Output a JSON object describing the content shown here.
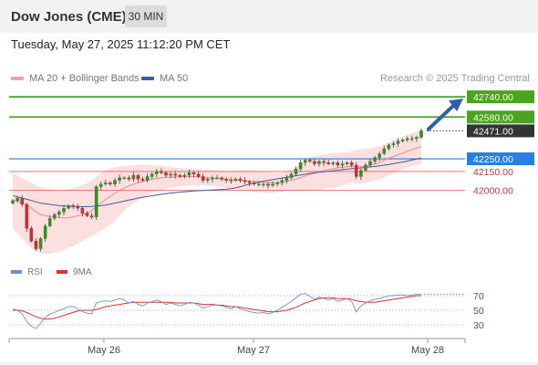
{
  "header": {
    "title": "Dow Jones (CME)",
    "timeframe": "30 MIN",
    "datetime": "Tuesday, May 27, 2025 11:12:20 PM CET"
  },
  "legend": {
    "ma20_label": "MA 20 + Bollinger Bands",
    "ma20_color": "#f4a0a0",
    "ma50_label": "MA 50",
    "ma50_color": "#3a5f9a",
    "copyright": "Research © 2025 Trading Central"
  },
  "rsi_legend": {
    "rsi_label": "RSI",
    "rsi_color": "#6a8fd8",
    "ma_label": "9MA",
    "ma_color": "#e03030"
  },
  "chart_data": [
    {
      "type": "candlestick",
      "x_ticks": [
        "May 26",
        "May 27",
        "May 28"
      ],
      "ylim": [
        41450,
        42820
      ],
      "levels": [
        {
          "value": 42740,
          "label": "42740.00",
          "kind": "resistance",
          "color": "#4aa41e"
        },
        {
          "value": 42580,
          "label": "42580.00",
          "kind": "resistance",
          "color": "#4aa41e"
        },
        {
          "value": 42471,
          "label": "42471.00",
          "kind": "last-price",
          "color": "#333333"
        },
        {
          "value": 42250,
          "label": "42250.00",
          "kind": "pivot",
          "color": "#2a7de1"
        },
        {
          "value": 42150,
          "label": "42150.00",
          "kind": "support",
          "color": "#e06060"
        },
        {
          "value": 42000,
          "label": "42000.00",
          "kind": "support",
          "color": "#e06060"
        }
      ],
      "closes": [
        41920,
        41940,
        41890,
        41700,
        41600,
        41540,
        41620,
        41720,
        41780,
        41810,
        41830,
        41860,
        41880,
        41870,
        41860,
        41820,
        41800,
        41790,
        42030,
        42050,
        42060,
        42050,
        42080,
        42100,
        42100,
        42090,
        42120,
        42090,
        42080,
        42110,
        42130,
        42150,
        42140,
        42120,
        42130,
        42120,
        42110,
        42120,
        42140,
        42130,
        42110,
        42080,
        42090,
        42100,
        42100,
        42090,
        42080,
        42080,
        42090,
        42080,
        42070,
        42060,
        42050,
        42050,
        42050,
        42040,
        42050,
        42060,
        42080,
        42100,
        42130,
        42170,
        42220,
        42240,
        42230,
        42210,
        42230,
        42220,
        42210,
        42220,
        42200,
        42210,
        42220,
        42200,
        42110,
        42160,
        42200,
        42230,
        42260,
        42290,
        42330,
        42360,
        42370,
        42390,
        42400,
        42410,
        42410,
        42420,
        42471
      ],
      "ma20": [
        41920,
        41918,
        41905,
        41885,
        41860,
        41830,
        41810,
        41800,
        41795,
        41790,
        41785,
        41782,
        41785,
        41792,
        41800,
        41810,
        41822,
        41840,
        41870,
        41900,
        41930,
        41955,
        41980,
        42000,
        42020,
        42035,
        42050,
        42060,
        42070,
        42080,
        42090,
        42095,
        42100,
        42103,
        42105,
        42107,
        42108,
        42110,
        42110,
        42110,
        42108,
        42105,
        42100,
        42097,
        42094,
        42090,
        42088,
        42085,
        42082,
        42079,
        42076,
        42073,
        42070,
        42068,
        42066,
        42064,
        42062,
        42063,
        42066,
        42072,
        42080,
        42090,
        42102,
        42115,
        42127,
        42137,
        42147,
        42157,
        42165,
        42172,
        42178,
        42183,
        42188,
        42190,
        42187,
        42188,
        42192,
        42200,
        42210,
        42222,
        42238,
        42254,
        42268,
        42282,
        42296,
        42310,
        42322,
        42333,
        42348
      ],
      "bb_upper": [
        42140,
        42120,
        42100,
        42080,
        42060,
        42040,
        42030,
        42020,
        42010,
        42000,
        42000,
        42000,
        42010,
        42020,
        42030,
        42045,
        42060,
        42080,
        42110,
        42140,
        42160,
        42175,
        42185,
        42190,
        42195,
        42198,
        42200,
        42200,
        42200,
        42200,
        42200,
        42198,
        42195,
        42190,
        42185,
        42180,
        42178,
        42175,
        42172,
        42170,
        42168,
        42165,
        42162,
        42160,
        42158,
        42156,
        42155,
        42155,
        42156,
        42158,
        42160,
        42160,
        42158,
        42155,
        42150,
        42145,
        42140,
        42138,
        42140,
        42148,
        42165,
        42185,
        42210,
        42235,
        42255,
        42270,
        42280,
        42285,
        42290,
        42295,
        42298,
        42300,
        42302,
        42310,
        42320,
        42325,
        42330,
        42335,
        42340,
        42350,
        42365,
        42380,
        42395,
        42410,
        42425,
        42440,
        42455,
        42465,
        42490
      ],
      "bb_lower": [
        41700,
        41660,
        41620,
        41580,
        41545,
        41520,
        41505,
        41500,
        41500,
        41505,
        41515,
        41530,
        41545,
        41560,
        41580,
        41600,
        41620,
        41640,
        41660,
        41680,
        41700,
        41730,
        41760,
        41800,
        41840,
        41870,
        41900,
        41920,
        41940,
        41960,
        41980,
        41990,
        42000,
        42010,
        42020,
        42028,
        42032,
        42035,
        42038,
        42040,
        42040,
        42040,
        42038,
        42035,
        42030,
        42025,
        42020,
        42015,
        42010,
        42005,
        42000,
        41995,
        41990,
        41985,
        41982,
        41980,
        41980,
        41985,
        41990,
        41995,
        41998,
        42000,
        42000,
        42000,
        42000,
        42002,
        42005,
        42010,
        42015,
        42020,
        42030,
        42040,
        42050,
        42060,
        42055,
        42055,
        42060,
        42068,
        42078,
        42090,
        42105,
        42120,
        42135,
        42150,
        42165,
        42180,
        42190,
        42198,
        42205
      ],
      "ma50": [
        41960,
        41950,
        41940,
        41930,
        41920,
        41910,
        41900,
        41895,
        41890,
        41885,
        41880,
        41878,
        41876,
        41874,
        41873,
        41872,
        41872,
        41873,
        41876,
        41880,
        41885,
        41892,
        41900,
        41908,
        41916,
        41924,
        41932,
        41940,
        41946,
        41952,
        41958,
        41964,
        41970,
        41975,
        41979,
        41983,
        41987,
        41990,
        41993,
        41996,
        41998,
        42000,
        42002,
        42004,
        42006,
        42008,
        42010,
        42014,
        42020,
        42030,
        42040,
        42050,
        42058,
        42066,
        42074,
        42080,
        42086,
        42092,
        42098,
        42104,
        42110,
        42116,
        42122,
        42128,
        42134,
        42139,
        42144,
        42148,
        42152,
        42156,
        42160,
        42164,
        42168,
        42172,
        42175,
        42178,
        42182,
        42186,
        42190,
        42195,
        42200,
        42206,
        42212,
        42218,
        42225,
        42232,
        42240,
        42248,
        42256
      ]
    },
    {
      "type": "line",
      "name": "RSI",
      "ylim": [
        15,
        85
      ],
      "y_ticks": [
        70,
        50,
        30
      ],
      "rsi": [
        52,
        50,
        45,
        35,
        28,
        25,
        32,
        40,
        45,
        47,
        50,
        52,
        55,
        55,
        52,
        48,
        46,
        45,
        60,
        62,
        63,
        62,
        64,
        66,
        64,
        60,
        62,
        58,
        56,
        60,
        62,
        64,
        62,
        58,
        60,
        58,
        56,
        58,
        61,
        60,
        57,
        53,
        55,
        57,
        57,
        56,
        54,
        52,
        55,
        52,
        50,
        48,
        47,
        46,
        47,
        45,
        47,
        50,
        54,
        58,
        62,
        67,
        72,
        73,
        69,
        65,
        68,
        66,
        64,
        66,
        62,
        64,
        66,
        62,
        48,
        56,
        60,
        63,
        65,
        66,
        68,
        70,
        70,
        71,
        71,
        70,
        71,
        72,
        72
      ],
      "rsi_ma": [
        50,
        50,
        49,
        47,
        44,
        41,
        39,
        38,
        38,
        39,
        41,
        43,
        45,
        47,
        49,
        50,
        50,
        50,
        51,
        53,
        55,
        56,
        57,
        58,
        59,
        60,
        61,
        61,
        61,
        61,
        61,
        61,
        61,
        61,
        61,
        60,
        60,
        60,
        60,
        60,
        59,
        58,
        58,
        58,
        57,
        57,
        56,
        55,
        55,
        54,
        53,
        52,
        51,
        50,
        49,
        48,
        48,
        48,
        49,
        50,
        52,
        54,
        57,
        60,
        62,
        64,
        66,
        67,
        67,
        67,
        66,
        66,
        66,
        65,
        63,
        62,
        61,
        61,
        61,
        62,
        63,
        64,
        65,
        66,
        67,
        68,
        69,
        70,
        70
      ]
    }
  ]
}
